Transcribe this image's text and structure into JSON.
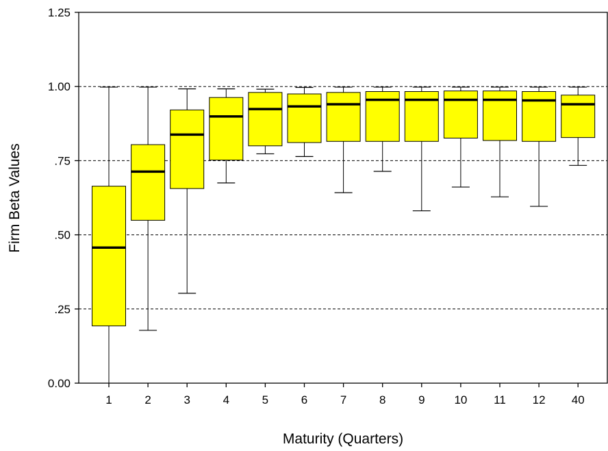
{
  "chart_data": {
    "type": "boxplot",
    "xlabel": "Maturity (Quarters)",
    "ylabel": "Firm Beta Values",
    "ylim": [
      0,
      1.25
    ],
    "yticks": [
      {
        "value": 0.0,
        "label": "0.00"
      },
      {
        "value": 0.25,
        "label": ".25"
      },
      {
        "value": 0.5,
        "label": ".50"
      },
      {
        "value": 0.75,
        "label": ".75"
      },
      {
        "value": 1.0,
        "label": "1.00"
      },
      {
        "value": 1.25,
        "label": "1.25"
      }
    ],
    "grid": "horizontal dashed",
    "box_color": "#ffff00",
    "categories": [
      "1",
      "2",
      "3",
      "4",
      "5",
      "6",
      "7",
      "8",
      "9",
      "10",
      "11",
      "12",
      "40"
    ],
    "boxes": [
      {
        "min": 0.0,
        "q1": 0.193,
        "median": 0.457,
        "q3": 0.664,
        "max": 0.998
      },
      {
        "min": 0.178,
        "q1": 0.549,
        "median": 0.713,
        "q3": 0.804,
        "max": 0.998
      },
      {
        "min": 0.303,
        "q1": 0.656,
        "median": 0.838,
        "q3": 0.921,
        "max": 0.992
      },
      {
        "min": 0.675,
        "q1": 0.752,
        "median": 0.899,
        "q3": 0.963,
        "max": 0.992
      },
      {
        "min": 0.773,
        "q1": 0.8,
        "median": 0.924,
        "q3": 0.98,
        "max": 0.991
      },
      {
        "min": 0.764,
        "q1": 0.811,
        "median": 0.933,
        "q3": 0.975,
        "max": 0.997
      },
      {
        "min": 0.642,
        "q1": 0.815,
        "median": 0.94,
        "q3": 0.98,
        "max": 0.998
      },
      {
        "min": 0.714,
        "q1": 0.815,
        "median": 0.955,
        "q3": 0.983,
        "max": 0.998
      },
      {
        "min": 0.581,
        "q1": 0.815,
        "median": 0.955,
        "q3": 0.983,
        "max": 0.998
      },
      {
        "min": 0.661,
        "q1": 0.826,
        "median": 0.955,
        "q3": 0.985,
        "max": 0.998
      },
      {
        "min": 0.628,
        "q1": 0.818,
        "median": 0.955,
        "q3": 0.985,
        "max": 0.998
      },
      {
        "min": 0.596,
        "q1": 0.815,
        "median": 0.953,
        "q3": 0.983,
        "max": 0.998
      },
      {
        "min": 0.734,
        "q1": 0.828,
        "median": 0.94,
        "q3": 0.971,
        "max": 0.998
      }
    ]
  }
}
